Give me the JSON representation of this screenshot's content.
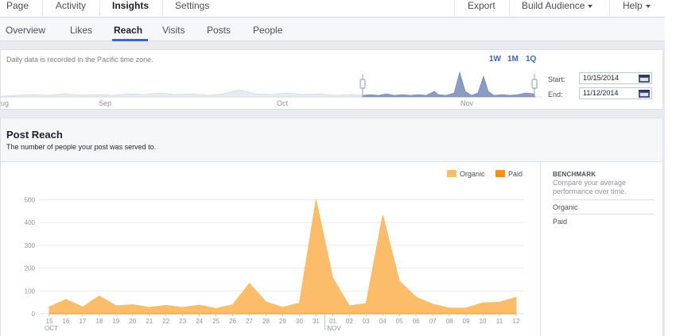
{
  "top_nav": {
    "items": [
      {
        "label": "Page"
      },
      {
        "label": "Activity"
      },
      {
        "label": "Insights"
      },
      {
        "label": "Settings"
      }
    ],
    "active": "Insights",
    "right_items": [
      {
        "label": "Export"
      },
      {
        "label": "Build Audience"
      },
      {
        "label": "Help"
      }
    ]
  },
  "sub_nav": {
    "items": [
      {
        "label": "Overview"
      },
      {
        "label": "Likes"
      },
      {
        "label": "Reach"
      },
      {
        "label": "Visits"
      },
      {
        "label": "Posts"
      },
      {
        "label": "People"
      }
    ],
    "active": "Reach"
  },
  "date_range": {
    "timezone_note": "Daily data is recorded in the Pacific time zone.",
    "zoom_options": [
      "1W",
      "1M",
      "1Q"
    ],
    "start_label": "Start:",
    "start_value": "10/15/2014",
    "end_label": "End:",
    "end_value": "11/12/2014",
    "timeline_labels": [
      "ug",
      "Sep",
      "Oct",
      "Nov"
    ]
  },
  "post_reach": {
    "title": "Post Reach",
    "subtitle": "The number of people your post was served to.",
    "legend": [
      {
        "name": "Organic",
        "color": "#fbbd6a"
      },
      {
        "name": "Paid",
        "color": "#f2911b"
      }
    ],
    "benchmark": {
      "title": "BENCHMARK",
      "description": "Compare your average performance over time.",
      "rows": [
        "Organic",
        "Paid"
      ]
    }
  },
  "chart_data": {
    "type": "area",
    "title": "Post Reach",
    "x": [
      "15",
      "16",
      "17",
      "18",
      "19",
      "20",
      "21",
      "22",
      "23",
      "24",
      "25",
      "26",
      "27",
      "28",
      "29",
      "30",
      "31",
      "01",
      "02",
      "03",
      "04",
      "05",
      "06",
      "07",
      "08",
      "09",
      "10",
      "11",
      "12"
    ],
    "month_labels": [
      {
        "label": "OCT",
        "at": "15"
      },
      {
        "label": "NOV",
        "at": "01"
      }
    ],
    "series": [
      {
        "name": "Organic",
        "color": "#fbbd6a",
        "values": [
          30,
          63,
          30,
          78,
          35,
          40,
          28,
          37,
          28,
          38,
          23,
          40,
          133,
          52,
          28,
          47,
          500,
          157,
          35,
          45,
          432,
          143,
          73,
          42,
          25,
          25,
          48,
          51,
          72
        ]
      },
      {
        "name": "Paid",
        "color": "#f2911b",
        "values": [
          0,
          0,
          0,
          0,
          0,
          0,
          0,
          0,
          0,
          0,
          0,
          0,
          0,
          0,
          0,
          0,
          0,
          0,
          0,
          0,
          0,
          0,
          0,
          0,
          0,
          0,
          0,
          0,
          0
        ]
      }
    ],
    "y_ticks": [
      0,
      100,
      200,
      300,
      400,
      500
    ],
    "ylim": [
      0,
      550
    ],
    "grid": true,
    "legend_position": "top-right"
  }
}
